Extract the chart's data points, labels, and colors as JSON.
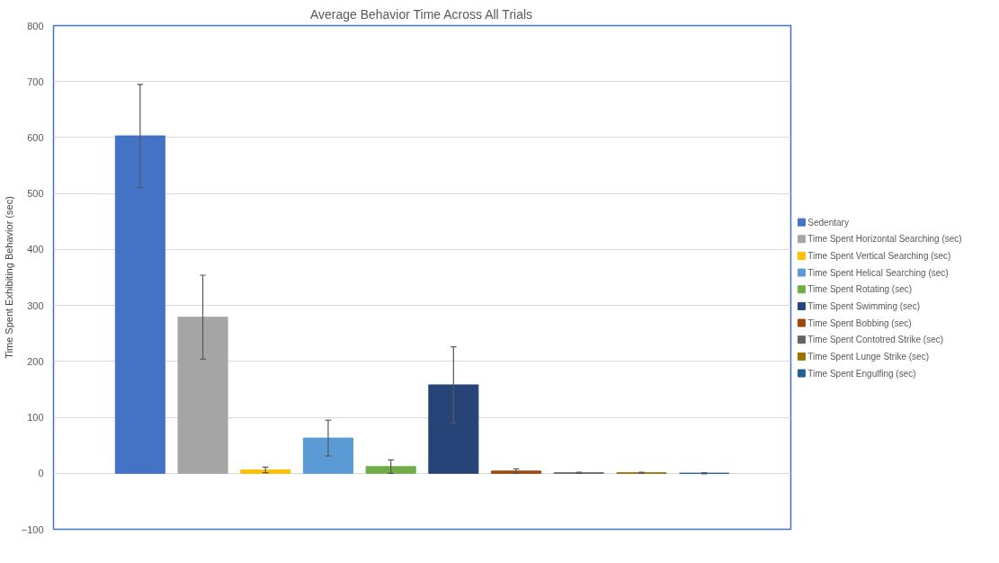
{
  "chart_data": {
    "type": "bar",
    "title": "Average Behavior Time Across All Trials",
    "ylabel": "Time Spent Exhibiting Behavior (sec)",
    "categories": [
      null
    ],
    "series": [
      {
        "name": "Sedentary",
        "color": "#4472c4",
        "values": [
          603
        ],
        "errors": [
          92
        ]
      },
      {
        "name": "Time Spent Horizontal Searching (sec)",
        "color": "#a5a5a5",
        "values": [
          279
        ],
        "errors": [
          75
        ]
      },
      {
        "name": "Time Spent Vertical Searching (sec)",
        "color": "#ffc000",
        "values": [
          6
        ],
        "errors": [
          5
        ]
      },
      {
        "name": "Time Spent Helical Searching (sec)",
        "color": "#5b9bd5",
        "values": [
          63
        ],
        "errors": [
          32
        ]
      },
      {
        "name": "Time Spent Rotating (sec)",
        "color": "#70ad47",
        "values": [
          12
        ],
        "errors": [
          12
        ]
      },
      {
        "name": "Time Spent Swimming (sec)",
        "color": "#264478",
        "values": [
          158
        ],
        "errors": [
          68
        ]
      },
      {
        "name": "Time Spent Bobbing (sec)",
        "color": "#9e480e",
        "values": [
          4
        ],
        "errors": [
          4
        ]
      },
      {
        "name": "Time Spent Contotred Strike (sec)",
        "color": "#636363",
        "values": [
          1
        ],
        "errors": [
          1
        ]
      },
      {
        "name": "Time Spent Lunge Strike (sec)",
        "color": "#997300",
        "values": [
          1
        ],
        "errors": [
          1
        ]
      },
      {
        "name": "Time Spent Engulfing (sec)",
        "color": "#255e91",
        "values": [
          0
        ],
        "errors": [
          1
        ]
      }
    ],
    "ylim": [
      -100,
      800
    ],
    "yticks": [
      -100,
      0,
      100,
      200,
      300,
      400,
      500,
      600,
      700,
      800
    ],
    "grid": "y",
    "legend": "right"
  }
}
